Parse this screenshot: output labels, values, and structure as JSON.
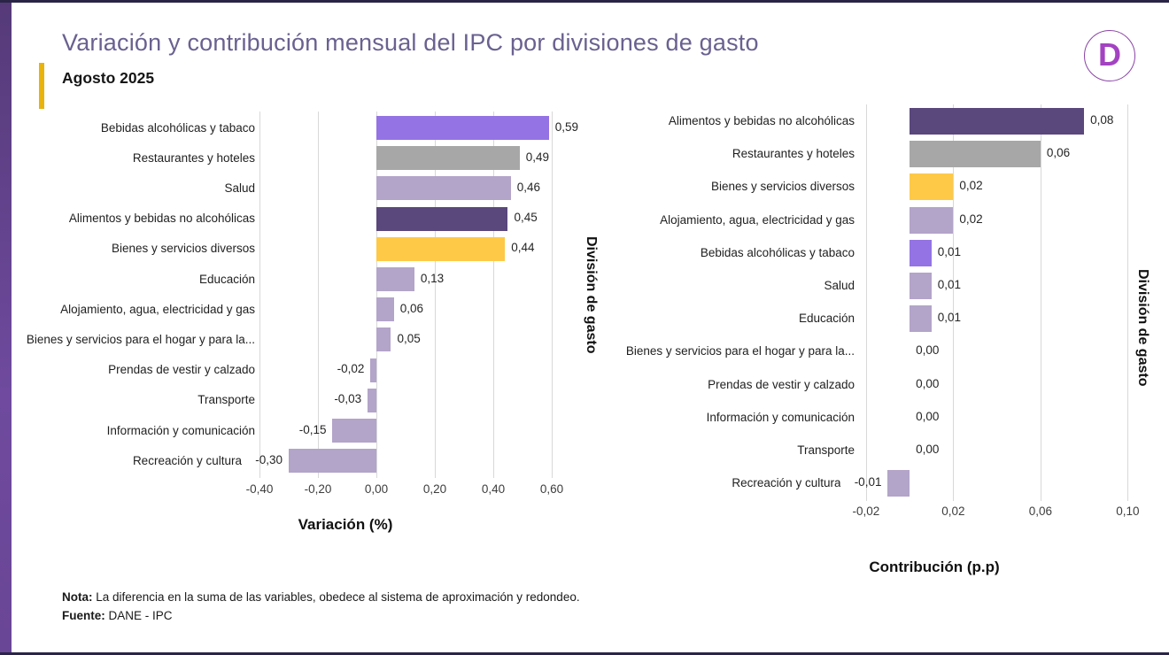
{
  "page": {
    "title": "Variación  y contribución mensual del IPC por divisiones de gasto",
    "subtitle": "Agosto 2025",
    "logo_letter": "D"
  },
  "colors": {
    "accent_strip": "#6f4a9e",
    "subtitle_accent": "#e9b30c",
    "title_text": "#6a6190",
    "gridline": "#d8d8d8",
    "palette": {
      "violet": "#9473e4",
      "gray": "#a7a7a7",
      "lavender": "#b3a4c9",
      "darkPurple": "#5a477c",
      "yellow": "#fec947"
    }
  },
  "note": {
    "label": "Nota:",
    "text": "La diferencia en la suma de las variables, obedece al sistema de aproximación y redondeo."
  },
  "source": {
    "label": "Fuente:",
    "text": "DANE - IPC"
  },
  "chart_data": [
    {
      "type": "bar",
      "orientation": "horizontal",
      "xlabel": "Variación (%)",
      "ylabel": "División de gasto",
      "grid": "vertical-gridlines-on",
      "legend": "none",
      "xlim": [
        -0.4909,
        0.6879
      ],
      "x_tick_values": [
        -0.4,
        -0.2,
        0.0,
        0.2,
        0.4,
        0.6
      ],
      "x_tick_labels": [
        "-0,40",
        "-0,20",
        "0,00",
        "0,20",
        "0,40",
        "0,60"
      ],
      "categories": [
        "Bebidas alcohólicas y tabaco",
        "Restaurantes y hoteles",
        "Salud",
        "Alimentos y bebidas no alcohólicas",
        "Bienes y servicios diversos",
        "Educación",
        "Alojamiento, agua, electricidad y gas",
        "Bienes y servicios para el hogar y para la...",
        "Prendas de vestir y calzado",
        "Transporte",
        "Información y comunicación",
        "Recreación y cultura"
      ],
      "values": [
        0.59,
        0.49,
        0.46,
        0.45,
        0.44,
        0.13,
        0.06,
        0.05,
        -0.02,
        -0.03,
        -0.15,
        -0.3
      ],
      "value_labels": [
        "0,59",
        "0,49",
        "0,46",
        "0,45",
        "0,44",
        "0,13",
        "0,06",
        "0,05",
        "-0,02",
        "-0,03",
        "-0,15",
        "-0,30"
      ],
      "bar_colors": [
        "violet",
        "gray",
        "lavender",
        "darkPurple",
        "yellow",
        "lavender",
        "lavender",
        "lavender",
        "lavender",
        "lavender",
        "lavender",
        "lavender"
      ]
    },
    {
      "type": "bar",
      "orientation": "horizontal",
      "xlabel": "Contribución (p.p)",
      "ylabel": "División de gasto",
      "grid": "vertical-gridlines-on",
      "legend": "none",
      "xlim": [
        -0.024,
        0.1027
      ],
      "x_tick_values": [
        -0.02,
        0.02,
        0.06,
        0.1
      ],
      "x_tick_labels": [
        "-0,02",
        "0,02",
        "0,06",
        "0,10"
      ],
      "categories": [
        "Alimentos y bebidas no alcohólicas",
        "Restaurantes y hoteles",
        "Bienes y servicios diversos",
        "Alojamiento, agua, electricidad y gas",
        "Bebidas alcohólicas y tabaco",
        "Salud",
        "Educación",
        "Bienes y servicios para el hogar y para la...",
        "Prendas de vestir y calzado",
        "Información y comunicación",
        "Transporte",
        "Recreación y cultura"
      ],
      "values": [
        0.08,
        0.06,
        0.02,
        0.02,
        0.01,
        0.01,
        0.01,
        0.0,
        0.0,
        0.0,
        0.0,
        -0.01
      ],
      "value_labels": [
        "0,08",
        "0,06",
        "0,02",
        "0,02",
        "0,01",
        "0,01",
        "0,01",
        "0,00",
        "0,00",
        "0,00",
        "0,00",
        "-0,01"
      ],
      "bar_colors": [
        "darkPurple",
        "gray",
        "yellow",
        "lavender",
        "violet",
        "lavender",
        "lavender",
        "lavender",
        "lavender",
        "lavender",
        "lavender",
        "lavender"
      ]
    }
  ]
}
